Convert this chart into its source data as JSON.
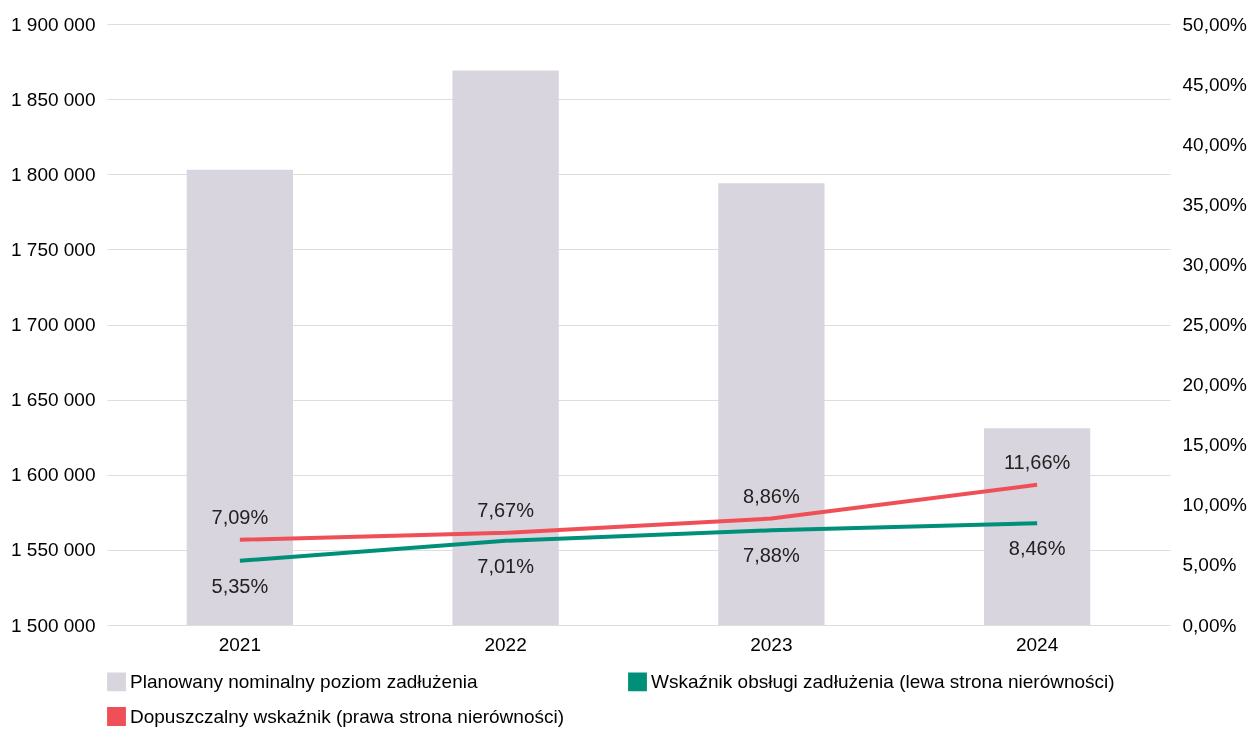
{
  "chart_data": {
    "type": "bar",
    "categories": [
      "2021",
      "2022",
      "2023",
      "2024"
    ],
    "series": [
      {
        "name": "Planowany nominalny poziom zadłużenia",
        "color": "#d9d5de",
        "values": [
          1803000,
          1869000,
          1794000,
          1631000
        ]
      },
      {
        "name": "Wskaźnik obsługi zadłużenia (lewa strona nierówności)",
        "type": "line",
        "axis": "y2",
        "color": "#00907a",
        "values": [
          5.35,
          7.01,
          7.88,
          8.46
        ],
        "value_labels": [
          "5,35%",
          "7,01%",
          "7,88%",
          "8,46%"
        ]
      },
      {
        "name": "Dopuszczalny wskaźnik (prawa strona nierówności)",
        "type": "line",
        "axis": "y2",
        "color": "#ef5058",
        "values": [
          7.09,
          7.67,
          8.86,
          11.66
        ],
        "value_labels": [
          "7,09%",
          "7,67%",
          "8,86%",
          "11,66%"
        ]
      }
    ],
    "ylim": [
      1500000,
      1900000
    ],
    "yticks": [
      {
        "value": 1500000,
        "label": "1 500 000"
      },
      {
        "value": 1550000,
        "label": "1 550 000"
      },
      {
        "value": 1600000,
        "label": "1 600 000"
      },
      {
        "value": 1650000,
        "label": "1 650 000"
      },
      {
        "value": 1700000,
        "label": "1 700 000"
      },
      {
        "value": 1750000,
        "label": "1 750 000"
      },
      {
        "value": 1800000,
        "label": "1 800 000"
      },
      {
        "value": 1850000,
        "label": "1 850 000"
      },
      {
        "value": 1900000,
        "label": "1 900 000"
      }
    ],
    "y2lim": [
      0,
      50
    ],
    "y2ticks": [
      {
        "value": 0,
        "label": "0,00%"
      },
      {
        "value": 5,
        "label": "5,00%"
      },
      {
        "value": 10,
        "label": "10,00%"
      },
      {
        "value": 15,
        "label": "15,00%"
      },
      {
        "value": 20,
        "label": "20,00%"
      },
      {
        "value": 25,
        "label": "25,00%"
      },
      {
        "value": 30,
        "label": "30,00%"
      },
      {
        "value": 35,
        "label": "35,00%"
      },
      {
        "value": 40,
        "label": "40,00%"
      },
      {
        "value": 45,
        "label": "45,00%"
      },
      {
        "value": 50,
        "label": "50,00%"
      }
    ],
    "grid": "y",
    "legend": "bottom",
    "line_style": "solid",
    "marker": "none"
  }
}
